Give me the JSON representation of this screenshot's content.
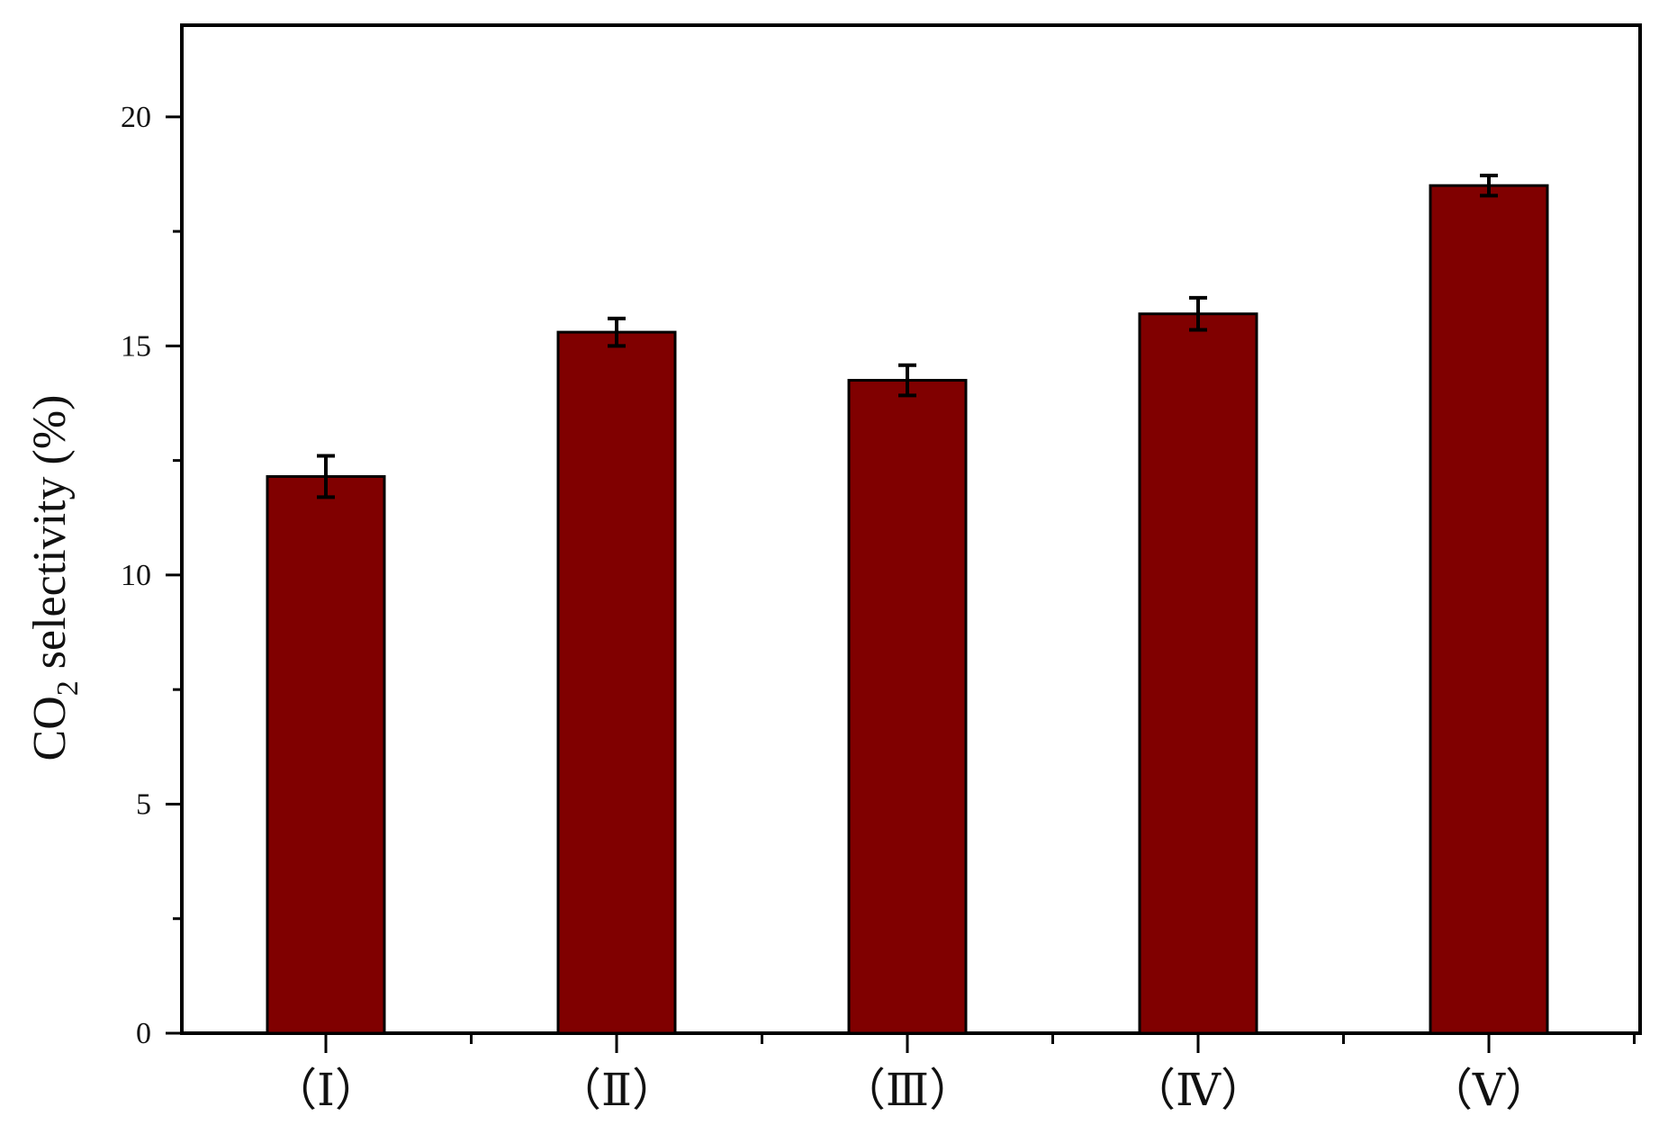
{
  "chart_data": {
    "type": "bar",
    "categories": [
      "（Ⅰ）",
      "（Ⅱ）",
      "（Ⅲ）",
      "（Ⅳ）",
      "（Ⅴ）"
    ],
    "values": [
      12.15,
      15.3,
      14.25,
      15.7,
      18.5
    ],
    "errors": [
      0.45,
      0.3,
      0.33,
      0.35,
      0.22
    ],
    "title": "",
    "xlabel": "",
    "ylabel": {
      "main": "CO",
      "subscript": "2",
      "rest": " selectivity (%)"
    },
    "ylim": [
      0,
      22
    ],
    "yticks": [
      0,
      5,
      10,
      15,
      20
    ],
    "grid": false,
    "legend": "none",
    "colors": {
      "bar": "#800000",
      "axis": "#000000"
    }
  }
}
